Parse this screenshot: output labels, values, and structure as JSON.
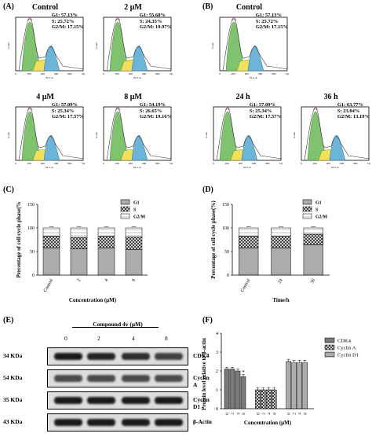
{
  "panel_labels": {
    "a": "(A)",
    "b": "(B)",
    "c": "(C)",
    "d": "(D)",
    "e": "(E)",
    "f": "(F)"
  },
  "histograms": [
    {
      "title": "Control",
      "g1": "G1: 57.13%",
      "s": "S: 25.72%",
      "g2m": "G2/M: 17.15%"
    },
    {
      "title": "2 μM",
      "g1": "G1: 55.68%",
      "s": "S: 24.35%",
      "g2m": "G2/M: 19.97%"
    },
    {
      "title": "Control",
      "g1": "G1: 57.13%",
      "s": "S: 25.72%",
      "g2m": "G2/M: 17.15%"
    },
    {
      "title": "4 μM",
      "g1": "G1: 57.09%",
      "s": "S: 25.34%",
      "g2m": "G2/M: 17.57%"
    },
    {
      "title": "8 μM",
      "g1": "G1: 54.19%",
      "s": "S: 26.65%",
      "g2m": "G2/M: 19.16%"
    },
    {
      "title": "24 h",
      "g1": "G1: 57.09%",
      "s": "S: 25.34%",
      "g2m": "G2/M: 17.57%"
    },
    {
      "title": "36 h",
      "g1": "G1: 63.77%",
      "s": "S: 23.04%",
      "g2m": "G2/M: 13.19%"
    }
  ],
  "hist_axis": {
    "ylabel": "Count",
    "xlabel": "FL2-A",
    "xticks": [
      "0",
      "200",
      "400",
      "600",
      "800",
      "1K"
    ]
  },
  "chart_data": [
    {
      "type": "bar",
      "stacked": true,
      "ylabel": "Percentage of cell cycle phase(%",
      "xlabel": "Concentration (μM)",
      "categories": [
        "Control",
        "2",
        "4",
        "8"
      ],
      "ylim": [
        0,
        150
      ],
      "yticks": [
        "0",
        "50",
        "100",
        "150"
      ],
      "legend_position": "top-right",
      "series": [
        {
          "name": "G1",
          "values": [
            57.13,
            55.68,
            57.09,
            54.19
          ]
        },
        {
          "name": "S",
          "values": [
            25.72,
            24.35,
            25.34,
            26.65
          ]
        },
        {
          "name": "G2/M",
          "values": [
            17.15,
            19.97,
            17.57,
            19.16
          ]
        }
      ]
    },
    {
      "type": "bar",
      "stacked": true,
      "ylabel": "Percentage of cell cycle phase(%)",
      "xlabel": "Time/h",
      "categories": [
        "Control",
        "24",
        "36"
      ],
      "ylim": [
        0,
        150
      ],
      "yticks": [
        "0",
        "50",
        "100",
        "150"
      ],
      "legend_position": "top-right",
      "series": [
        {
          "name": "G1",
          "values": [
            57.13,
            57.09,
            63.77
          ]
        },
        {
          "name": "S",
          "values": [
            25.72,
            25.34,
            23.04
          ]
        },
        {
          "name": "G2/M",
          "values": [
            17.15,
            17.57,
            13.19
          ]
        }
      ]
    },
    {
      "type": "bar",
      "grouped": true,
      "ylabel": "Protein level relative to β-actin",
      "xlabel": "Concentration (μM)",
      "ylim": [
        0,
        4
      ],
      "yticks": [
        "0",
        "1",
        "2",
        "3",
        "4"
      ],
      "legend_position": "top-right",
      "groups": [
        {
          "name": "CDK4",
          "categories": [
            "0",
            "2",
            "4",
            "8"
          ],
          "values": [
            2.1,
            2.1,
            2.0,
            1.7
          ],
          "errors": [
            0.1,
            0.1,
            0.1,
            0.1
          ],
          "marks": [
            "",
            "",
            "",
            "*"
          ]
        },
        {
          "name": "Cyclin A",
          "categories": [
            "0",
            "2",
            "4",
            "8"
          ],
          "values": [
            1.0,
            1.0,
            1.0,
            1.0
          ],
          "errors": [
            0.12,
            0.12,
            0.12,
            0.12
          ],
          "marks": [
            "",
            "",
            "",
            ""
          ]
        },
        {
          "name": "Cyclin D1",
          "categories": [
            "0",
            "2",
            "4",
            "8"
          ],
          "values": [
            2.5,
            2.45,
            2.45,
            2.45
          ],
          "errors": [
            0.12,
            0.12,
            0.12,
            0.12
          ],
          "marks": [
            "",
            "",
            "",
            ""
          ]
        }
      ]
    }
  ],
  "western": {
    "compound_label": "Compound 4v (μM)",
    "lanes": [
      "0",
      "2",
      "4",
      "8"
    ],
    "rows": [
      {
        "kda": "34 KDa",
        "name": "CDK4",
        "intensity": [
          1.0,
          0.95,
          0.9,
          0.8
        ]
      },
      {
        "kda": "54 KDa",
        "name": "Cyclin A",
        "intensity": [
          0.75,
          0.75,
          0.75,
          0.75
        ]
      },
      {
        "kda": "35 KDa",
        "name": "Cyclin D1",
        "intensity": [
          1.0,
          1.0,
          1.0,
          1.0
        ]
      },
      {
        "kda": "43 KDa",
        "name": "β-Actin",
        "intensity": [
          1.0,
          1.0,
          1.0,
          1.0
        ]
      }
    ]
  }
}
